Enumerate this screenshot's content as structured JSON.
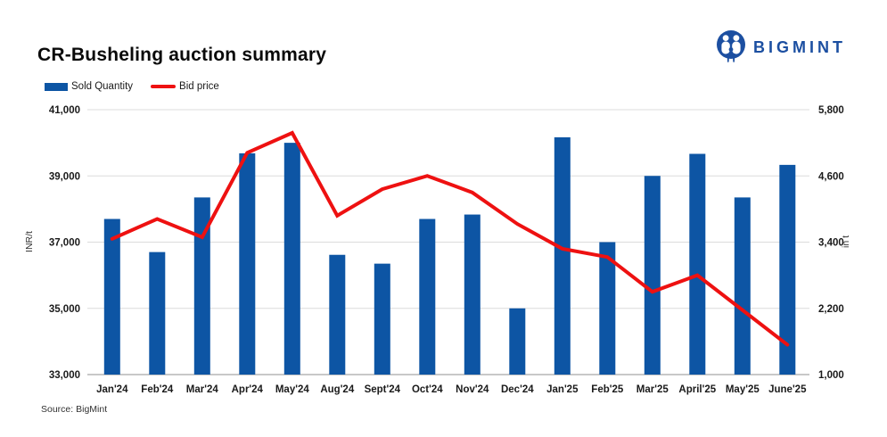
{
  "header": {
    "title": "CR-Busheling auction summary",
    "brand": "BIGMINT"
  },
  "legend": [
    {
      "label": "Sold Quantity",
      "swatch": "bar-swatch"
    },
    {
      "label": "Bid price",
      "swatch": "line-swatch"
    }
  ],
  "source": "Source: BigMint",
  "colors": {
    "bar": "#0d55a4",
    "line": "#ee1111",
    "brand": "#1c4fa1",
    "grid": "#dcdcdc",
    "baseline": "#b5b5b5",
    "text": "#1a1a1a",
    "unit_text": "#333333"
  },
  "chart_data": {
    "type": "bar+line",
    "title": "CR-Busheling auction summary",
    "grid": true,
    "legend_position": "top-left",
    "categories": [
      "Jan'24",
      "Feb'24",
      "Mar'24",
      "Apr'24",
      "May'24",
      "Aug'24",
      "Sept'24",
      "Oct'24",
      "Nov'24",
      "Dec'24",
      "Jan'25",
      "Feb'25",
      "Mar'25",
      "April'25",
      "May'25",
      "June'25"
    ],
    "series": [
      {
        "name": "Sold Quantity",
        "type": "bar",
        "axis": "right",
        "unit": "t",
        "values": [
          3820,
          3220,
          4210,
          5010,
          5200,
          3170,
          3010,
          3820,
          3900,
          2200,
          5300,
          3400,
          4600,
          5000,
          4210,
          4800
        ]
      },
      {
        "name": "Bid price",
        "type": "line",
        "axis": "left",
        "unit": "INR/t",
        "values": [
          37100,
          37700,
          37150,
          39700,
          40300,
          37800,
          38600,
          39000,
          38500,
          37550,
          36800,
          36550,
          35500,
          36000,
          34950,
          33900
        ]
      }
    ],
    "left_axis": {
      "label": "INR/t",
      "min": 33000,
      "max": 41000,
      "tick_labels_top_down": [
        "41,000",
        "39,000",
        "37,000",
        "35,000",
        "33,000"
      ]
    },
    "right_axis": {
      "label": "in t",
      "min": 1000,
      "max": 5800,
      "tick_labels_top_down": [
        "5,800",
        "4,600",
        "3,400",
        "2,200",
        "1,000"
      ]
    }
  }
}
